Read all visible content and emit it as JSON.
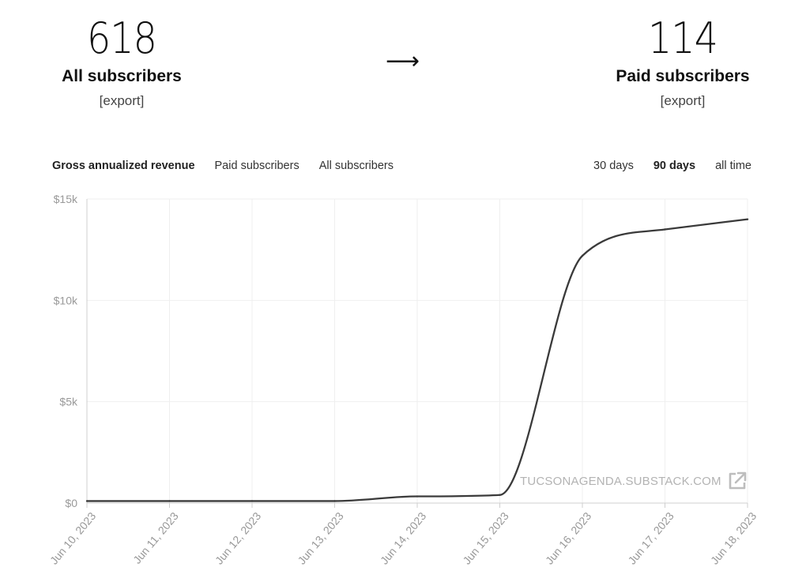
{
  "stats": {
    "all": {
      "count": "618",
      "label": "All subscribers",
      "export": "[export]"
    },
    "paid": {
      "count": "114",
      "label": "Paid subscribers",
      "export": "[export]"
    },
    "arrow": "⟶"
  },
  "tabs": [
    {
      "label": "Gross annualized revenue",
      "active": true
    },
    {
      "label": "Paid subscribers",
      "active": false
    },
    {
      "label": "All subscribers",
      "active": false
    }
  ],
  "ranges": [
    {
      "label": "30 days",
      "active": false
    },
    {
      "label": "90 days",
      "active": true
    },
    {
      "label": "all time",
      "active": false
    }
  ],
  "watermark": "TUCSONAGENDA.SUBSTACK.COM",
  "icons": {
    "external": "external-link-icon"
  },
  "colors": {
    "line": "#3a3a3a",
    "grid": "#efefef",
    "axis": "#cfcfcf",
    "tick": "#999999"
  },
  "chart_data": {
    "type": "line",
    "x": [
      "Jun 10, 2023",
      "Jun 11, 2023",
      "Jun 12, 2023",
      "Jun 13, 2023",
      "Jun 14, 2023",
      "Jun 15, 2023",
      "Jun 16, 2023",
      "Jun 17, 2023",
      "Jun 18, 2023"
    ],
    "series": [
      {
        "values": [
          100,
          100,
          100,
          100,
          330,
          400,
          12200,
          13500,
          14000
        ]
      }
    ],
    "y_ticks": [
      "$0",
      "$5k",
      "$10k",
      "$15k"
    ],
    "ylim": [
      0,
      15000
    ],
    "grid": true
  }
}
